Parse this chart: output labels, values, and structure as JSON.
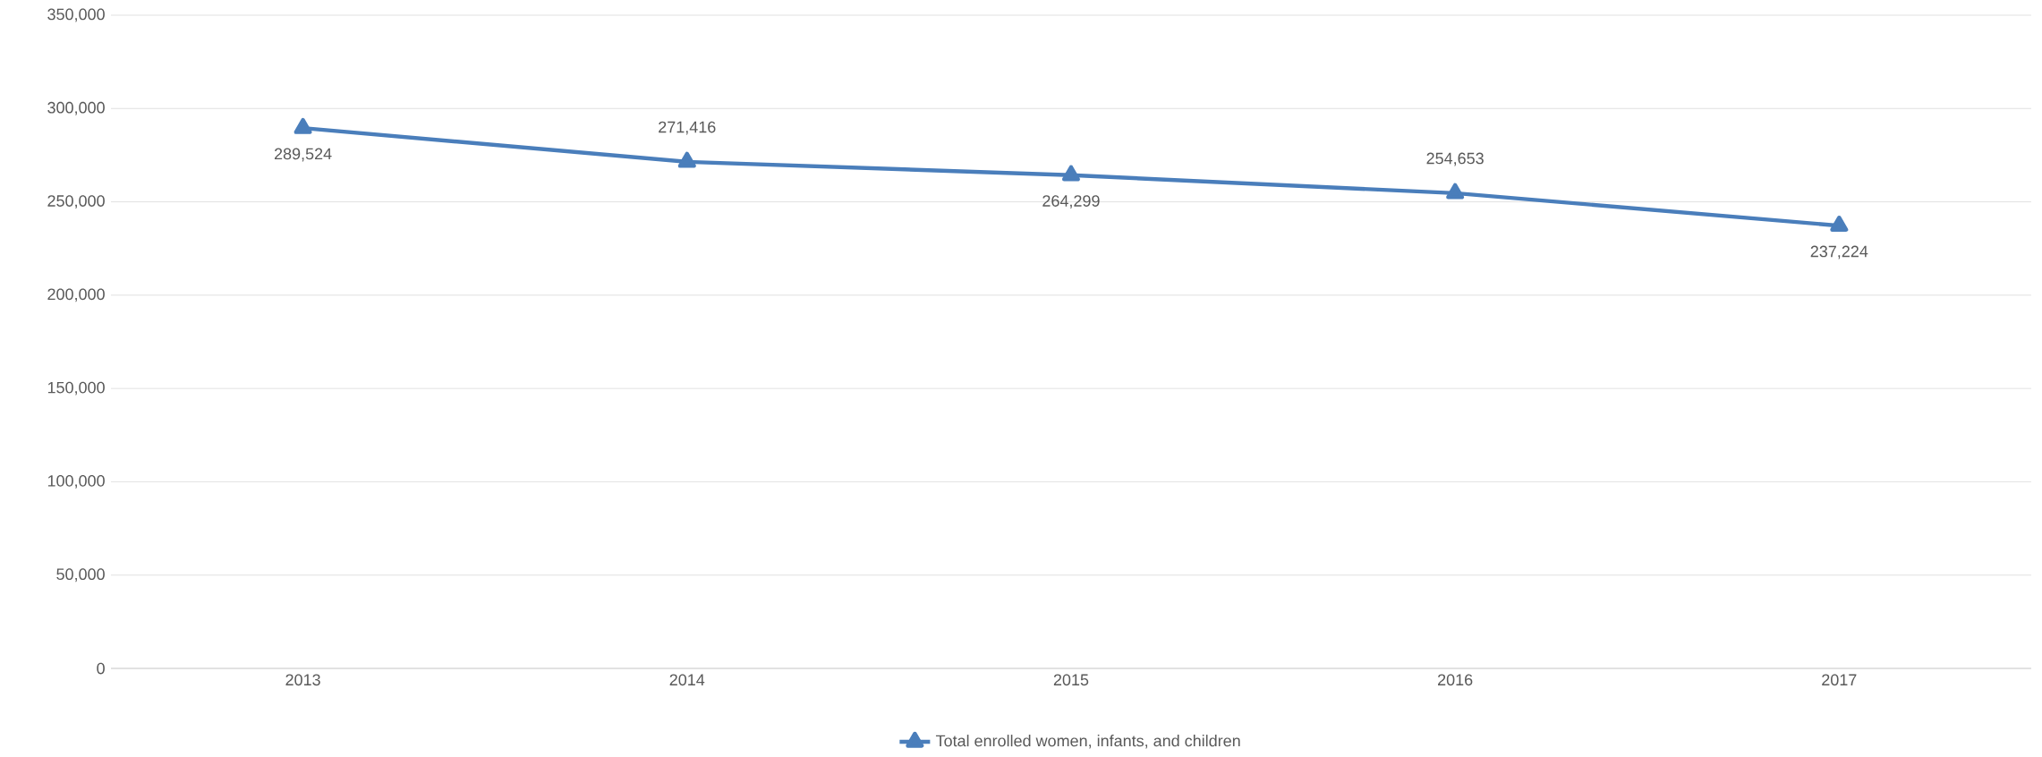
{
  "chart_data": {
    "type": "line",
    "categories": [
      "2013",
      "2014",
      "2015",
      "2016",
      "2017"
    ],
    "series": [
      {
        "name": "Total enrolled women, infants, and children",
        "color": "#4a7ebb",
        "values": [
          289524,
          271416,
          264299,
          254653,
          237224
        ],
        "value_labels": [
          "289,524",
          "271,416",
          "264,299",
          "254,653",
          "237,224"
        ]
      }
    ],
    "ylim": [
      0,
      350000
    ],
    "yticks": [
      {
        "value": 0,
        "label": "0"
      },
      {
        "value": 50000,
        "label": "50,000"
      },
      {
        "value": 100000,
        "label": "100,000"
      },
      {
        "value": 150000,
        "label": "150,000"
      },
      {
        "value": 200000,
        "label": "200,000"
      },
      {
        "value": 250000,
        "label": "250,000"
      },
      {
        "value": 300000,
        "label": "300,000"
      },
      {
        "value": 350000,
        "label": "350,000"
      }
    ],
    "grid": "y",
    "legend": "bottom",
    "marker": "triangle",
    "line_style": "solid"
  }
}
